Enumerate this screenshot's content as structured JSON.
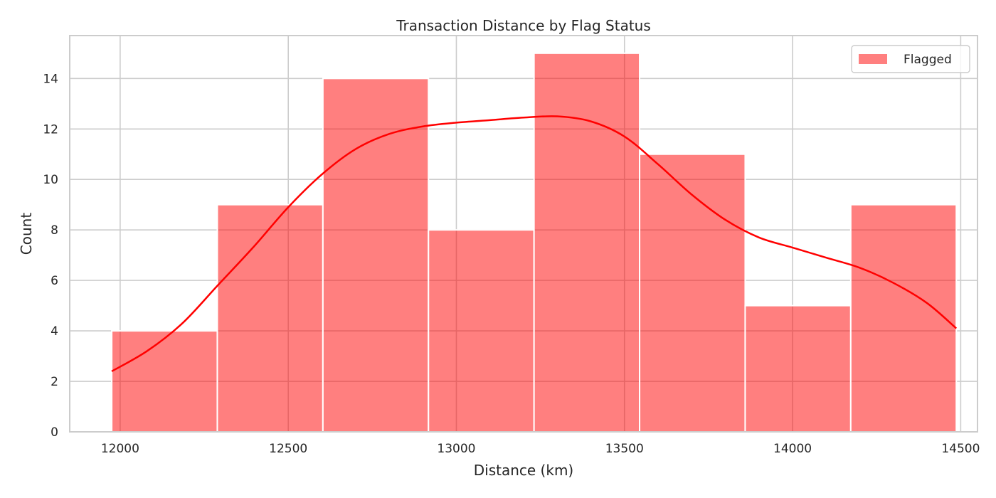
{
  "chart_data": {
    "type": "bar",
    "title": "Transaction Distance by Flag Status",
    "xlabel": "Distance (km)",
    "ylabel": "Count",
    "xlim": [
      11850,
      14550
    ],
    "ylim": [
      0,
      15.7
    ],
    "xticks": [
      12000,
      12500,
      13000,
      13500,
      14000,
      14500
    ],
    "yticks": [
      0,
      2,
      4,
      6,
      8,
      10,
      12,
      14
    ],
    "grid": true,
    "legend_position": "top-right",
    "color": "#ff0000",
    "series": [
      {
        "name": "Flagged",
        "bin_edges": [
          11975,
          12289,
          12603,
          12917,
          13231,
          13545,
          13859,
          14173,
          14487
        ],
        "values": [
          4,
          9,
          14,
          8,
          15,
          11,
          5,
          9
        ],
        "kde": {
          "x": [
            11975,
            12080,
            12185,
            12290,
            12395,
            12500,
            12600,
            12700,
            12800,
            12900,
            13000,
            13100,
            13200,
            13300,
            13400,
            13500,
            13600,
            13700,
            13800,
            13900,
            14000,
            14100,
            14200,
            14300,
            14400,
            14487
          ],
          "y": [
            2.4,
            3.2,
            4.3,
            5.8,
            7.3,
            8.9,
            10.2,
            11.2,
            11.8,
            12.1,
            12.25,
            12.35,
            12.45,
            12.5,
            12.3,
            11.7,
            10.6,
            9.4,
            8.4,
            7.7,
            7.3,
            6.9,
            6.5,
            5.9,
            5.1,
            4.1
          ]
        }
      }
    ]
  }
}
